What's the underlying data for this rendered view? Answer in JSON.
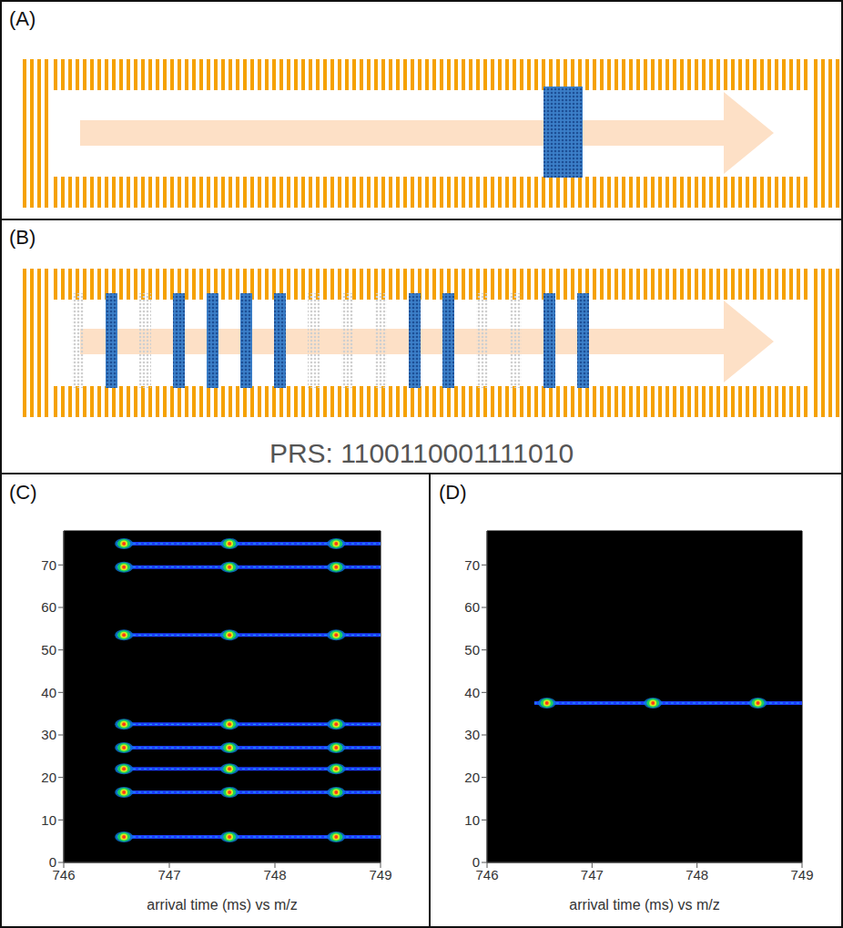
{
  "panels": [
    {
      "label": "(A)"
    },
    {
      "label": "(B)",
      "text": "PRS: 1100110001111010"
    },
    {
      "label": "(C)"
    },
    {
      "label": "(D)"
    }
  ],
  "chart_data": [
    {
      "type": "heatmap",
      "xlabel": "arrival time (ms) vs m/z",
      "xlim": [
        746,
        749
      ],
      "xticks": [
        746,
        747,
        748,
        749
      ],
      "ylim": [
        0,
        78
      ],
      "yticks": [
        0,
        10,
        20,
        30,
        40,
        50,
        60,
        70
      ],
      "streaks": [
        {
          "y": 75,
          "x": [
            746.5,
            749
          ]
        },
        {
          "y": 69.5,
          "x": [
            746.5,
            749
          ]
        },
        {
          "y": 53.5,
          "x": [
            746.5,
            749
          ]
        },
        {
          "y": 32.5,
          "x": [
            746.5,
            749
          ]
        },
        {
          "y": 27,
          "x": [
            746.5,
            749
          ]
        },
        {
          "y": 22,
          "x": [
            746.5,
            749
          ]
        },
        {
          "y": 16.5,
          "x": [
            746.5,
            749
          ]
        },
        {
          "y": 6,
          "x": [
            746.5,
            749
          ]
        }
      ],
      "peaks_x": [
        746.57,
        747.57,
        748.58
      ]
    },
    {
      "type": "heatmap",
      "xlabel": "arrival time (ms) vs m/z",
      "xlim": [
        746,
        749
      ],
      "xticks": [
        746,
        747,
        748,
        749
      ],
      "ylim": [
        0,
        78
      ],
      "yticks": [
        0,
        10,
        20,
        30,
        40,
        50,
        60,
        70
      ],
      "streaks": [
        {
          "y": 37.5,
          "x": [
            746.45,
            749
          ]
        }
      ],
      "peaks_x": [
        746.57,
        747.58,
        748.58
      ]
    }
  ]
}
